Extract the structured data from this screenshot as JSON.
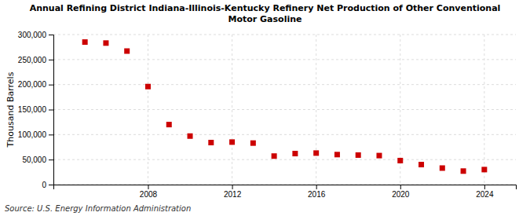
{
  "chart_data": {
    "type": "scatter",
    "title": "Annual Refining District Indiana-Illinois-Kentucky Refinery Net Production of Other Conventional\nMotor Gasoline",
    "ylabel": "Thousand Barrels",
    "source": "Source: U.S. Energy Information Administration",
    "x": [
      2005,
      2006,
      2007,
      2008,
      2009,
      2010,
      2011,
      2012,
      2013,
      2014,
      2015,
      2016,
      2017,
      2018,
      2019,
      2020,
      2021,
      2022,
      2023,
      2024
    ],
    "values": [
      285000,
      283000,
      267000,
      196000,
      120000,
      97000,
      84000,
      85000,
      83000,
      57000,
      62000,
      63000,
      60000,
      59000,
      58000,
      48000,
      40000,
      33000,
      27000,
      30000
    ],
    "color": "#cc0000",
    "marker": "square",
    "xlim": [
      2003.5,
      2025.5
    ],
    "xticks": [
      2008,
      2012,
      2016,
      2020,
      2024
    ],
    "ylim": [
      0,
      300000
    ],
    "yticks": [
      0,
      {
        "value": 50000,
        "label": "50,000"
      },
      {
        "value": 100000,
        "label": "100,000"
      },
      {
        "value": 150000,
        "label": "150,000"
      },
      {
        "value": 200000,
        "label": "200,000"
      },
      {
        "value": 250000,
        "label": "250,000"
      },
      {
        "value": 300000,
        "label": "300,000"
      }
    ],
    "grid": true
  }
}
